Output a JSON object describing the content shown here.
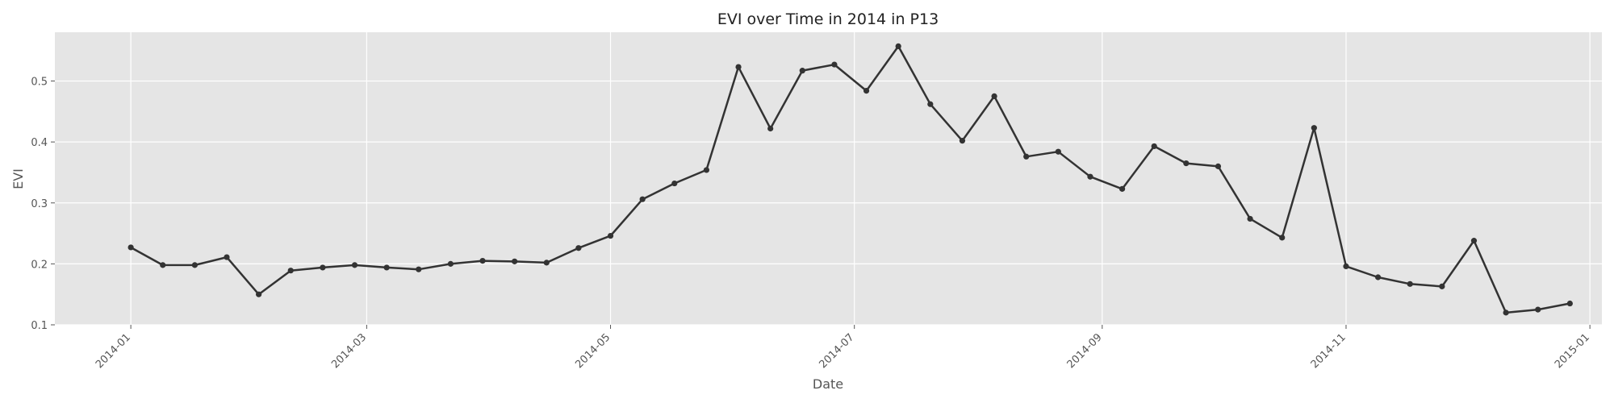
{
  "chart_data": {
    "type": "line",
    "title": "EVI over Time in 2014 in P13",
    "xlabel": "Date",
    "ylabel": "EVI",
    "x_range": [
      "2013-12-13",
      "2015-01-04"
    ],
    "ylim": [
      0.1,
      0.58
    ],
    "x_ticks": [
      "2014-01-01",
      "2014-03-01",
      "2014-05-01",
      "2014-07-01",
      "2014-09-01",
      "2014-11-01",
      "2015-01-01"
    ],
    "x_tick_labels": [
      "2014-01",
      "2014-03",
      "2014-05",
      "2014-07",
      "2014-09",
      "2014-11",
      "2015-01"
    ],
    "y_ticks": [
      0.1,
      0.2,
      0.3,
      0.4,
      0.5
    ],
    "y_tick_labels": [
      "0.1",
      "0.2",
      "0.3",
      "0.4",
      "0.5"
    ],
    "grid": true,
    "line_color": "#333333",
    "background_color": "#e5e5e5",
    "grid_color": "#ffffff",
    "series": [
      {
        "x": [
          "2014-01-01",
          "2014-01-09",
          "2014-01-17",
          "2014-01-25",
          "2014-02-02",
          "2014-02-10",
          "2014-02-18",
          "2014-02-26",
          "2014-03-06",
          "2014-03-14",
          "2014-03-22",
          "2014-03-30",
          "2014-04-07",
          "2014-04-15",
          "2014-04-23",
          "2014-05-01",
          "2014-05-09",
          "2014-05-17",
          "2014-05-25",
          "2014-06-02",
          "2014-06-10",
          "2014-06-18",
          "2014-06-26",
          "2014-07-04",
          "2014-07-12",
          "2014-07-20",
          "2014-07-28",
          "2014-08-05",
          "2014-08-13",
          "2014-08-21",
          "2014-08-29",
          "2014-09-06",
          "2014-09-14",
          "2014-09-22",
          "2014-09-30",
          "2014-10-08",
          "2014-10-16",
          "2014-10-24",
          "2014-11-01",
          "2014-11-09",
          "2014-11-17",
          "2014-11-25",
          "2014-12-03",
          "2014-12-11",
          "2014-12-19",
          "2014-12-27"
        ],
        "y": [
          0.227,
          0.198,
          0.198,
          0.211,
          0.15,
          0.189,
          0.194,
          0.198,
          0.194,
          0.191,
          0.2,
          0.205,
          0.204,
          0.202,
          0.226,
          0.246,
          0.306,
          0.332,
          0.354,
          0.523,
          0.422,
          0.517,
          0.527,
          0.484,
          0.557,
          0.462,
          0.402,
          0.475,
          0.376,
          0.384,
          0.343,
          0.323,
          0.393,
          0.365,
          0.36,
          0.274,
          0.243,
          0.423,
          0.196,
          0.178,
          0.167,
          0.163,
          0.238,
          0.12,
          0.125,
          0.135
        ]
      }
    ]
  }
}
